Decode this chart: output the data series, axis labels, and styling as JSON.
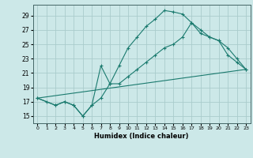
{
  "xlabel": "Humidex (Indice chaleur)",
  "ylabel": "",
  "background_color": "#cce8e8",
  "grid_color": "#aacccc",
  "line_color": "#1a7a6e",
  "xlim": [
    -0.5,
    23.5
  ],
  "ylim": [
    14.0,
    30.5
  ],
  "xticks": [
    0,
    1,
    2,
    3,
    4,
    5,
    6,
    7,
    8,
    9,
    10,
    11,
    12,
    13,
    14,
    15,
    16,
    17,
    18,
    19,
    20,
    21,
    22,
    23
  ],
  "yticks": [
    15,
    17,
    19,
    21,
    23,
    25,
    27,
    29
  ],
  "curve1_x": [
    0,
    1,
    2,
    3,
    4,
    5,
    6,
    7,
    8,
    9,
    10,
    11,
    12,
    13,
    14,
    15,
    16,
    17,
    18,
    19,
    20,
    21,
    22,
    23
  ],
  "curve1_y": [
    17.5,
    17.0,
    16.5,
    17.0,
    16.5,
    15.0,
    16.5,
    17.5,
    19.5,
    22.0,
    24.5,
    26.0,
    27.5,
    28.5,
    29.7,
    29.5,
    29.2,
    28.0,
    27.0,
    26.0,
    25.5,
    24.5,
    23.0,
    21.5
  ],
  "curve2_x": [
    0,
    2,
    3,
    4,
    5,
    6,
    7,
    8,
    9,
    10,
    11,
    12,
    13,
    14,
    15,
    16,
    17,
    18,
    19,
    20,
    21,
    22,
    23
  ],
  "curve2_y": [
    17.5,
    16.5,
    17.0,
    16.5,
    15.0,
    16.5,
    22.0,
    19.5,
    19.5,
    20.5,
    21.5,
    22.5,
    23.5,
    24.5,
    25.0,
    26.0,
    28.0,
    26.5,
    26.0,
    25.5,
    23.5,
    22.5,
    21.5
  ],
  "curve3_x": [
    0,
    23
  ],
  "curve3_y": [
    17.5,
    21.5
  ]
}
